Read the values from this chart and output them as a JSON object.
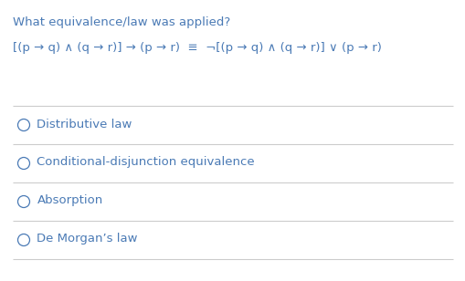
{
  "title": "What equivalence/law was applied?",
  "formula": "[(p → q) ∧ (q → r)] → (p → r)  ≡  ¬[(p → q) ∧ (q → r)] ∨ (p → r)",
  "options": [
    "Distributive law",
    "Conditional-disjunction equivalence",
    "Absorption",
    "De Morgan’s law"
  ],
  "text_color": "#4a7ab5",
  "bg_color": "#ffffff",
  "line_color": "#cccccc",
  "title_fontsize": 9.5,
  "formula_fontsize": 9.5,
  "option_fontsize": 9.5
}
